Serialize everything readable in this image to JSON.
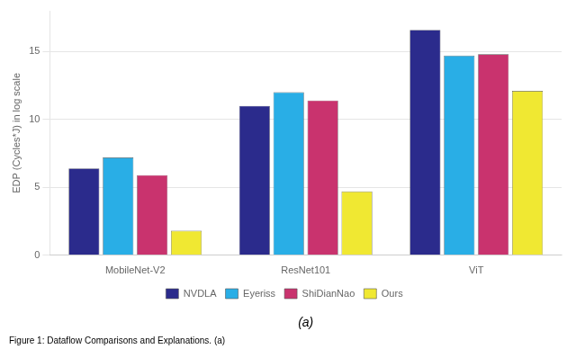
{
  "chart_data": {
    "type": "bar",
    "categories": [
      "MobileNet-V2",
      "ResNet101",
      "ViT"
    ],
    "series": [
      {
        "name": "NVDLA",
        "color": "#2b2b8c",
        "values": [
          6.4,
          11.0,
          16.6
        ]
      },
      {
        "name": "Eyeriss",
        "color": "#29aee6",
        "values": [
          7.2,
          12.0,
          14.7
        ]
      },
      {
        "name": "ShiDianNao",
        "color": "#c9336e",
        "values": [
          5.9,
          11.4,
          14.8
        ]
      },
      {
        "name": "Ours",
        "color": "#f0e832",
        "values": [
          1.8,
          4.7,
          12.1
        ]
      }
    ],
    "y_label": "EDP (Cycles*J) in log scale",
    "ylim": [
      0,
      18
    ],
    "yticks": [
      0,
      5,
      10,
      15
    ],
    "grid": true,
    "legend": "bottom",
    "annotations": [
      "(a)",
      "Figure 1: Dataflow Comparisons and Explanations. (a)"
    ]
  }
}
